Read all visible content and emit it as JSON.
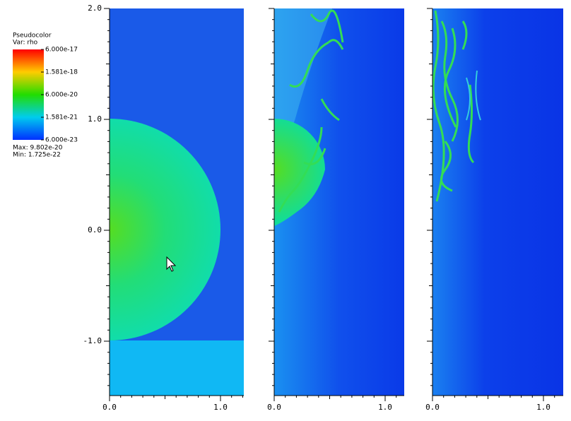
{
  "legend": {
    "title": "Pseudocolor",
    "variable": "Var: rho",
    "labels": [
      "6.000e-17",
      "1.581e-18",
      "6.000e-20",
      "1.581e-21",
      "6.000e-23"
    ],
    "max": "Max: 9.802e-20",
    "min": "Min: 1.725e-22"
  },
  "axes": {
    "y_ticks": [
      "2.0",
      "1.0",
      "0.0",
      "-1.0"
    ],
    "x_ticks": [
      "0.0",
      "1.0"
    ]
  }
}
